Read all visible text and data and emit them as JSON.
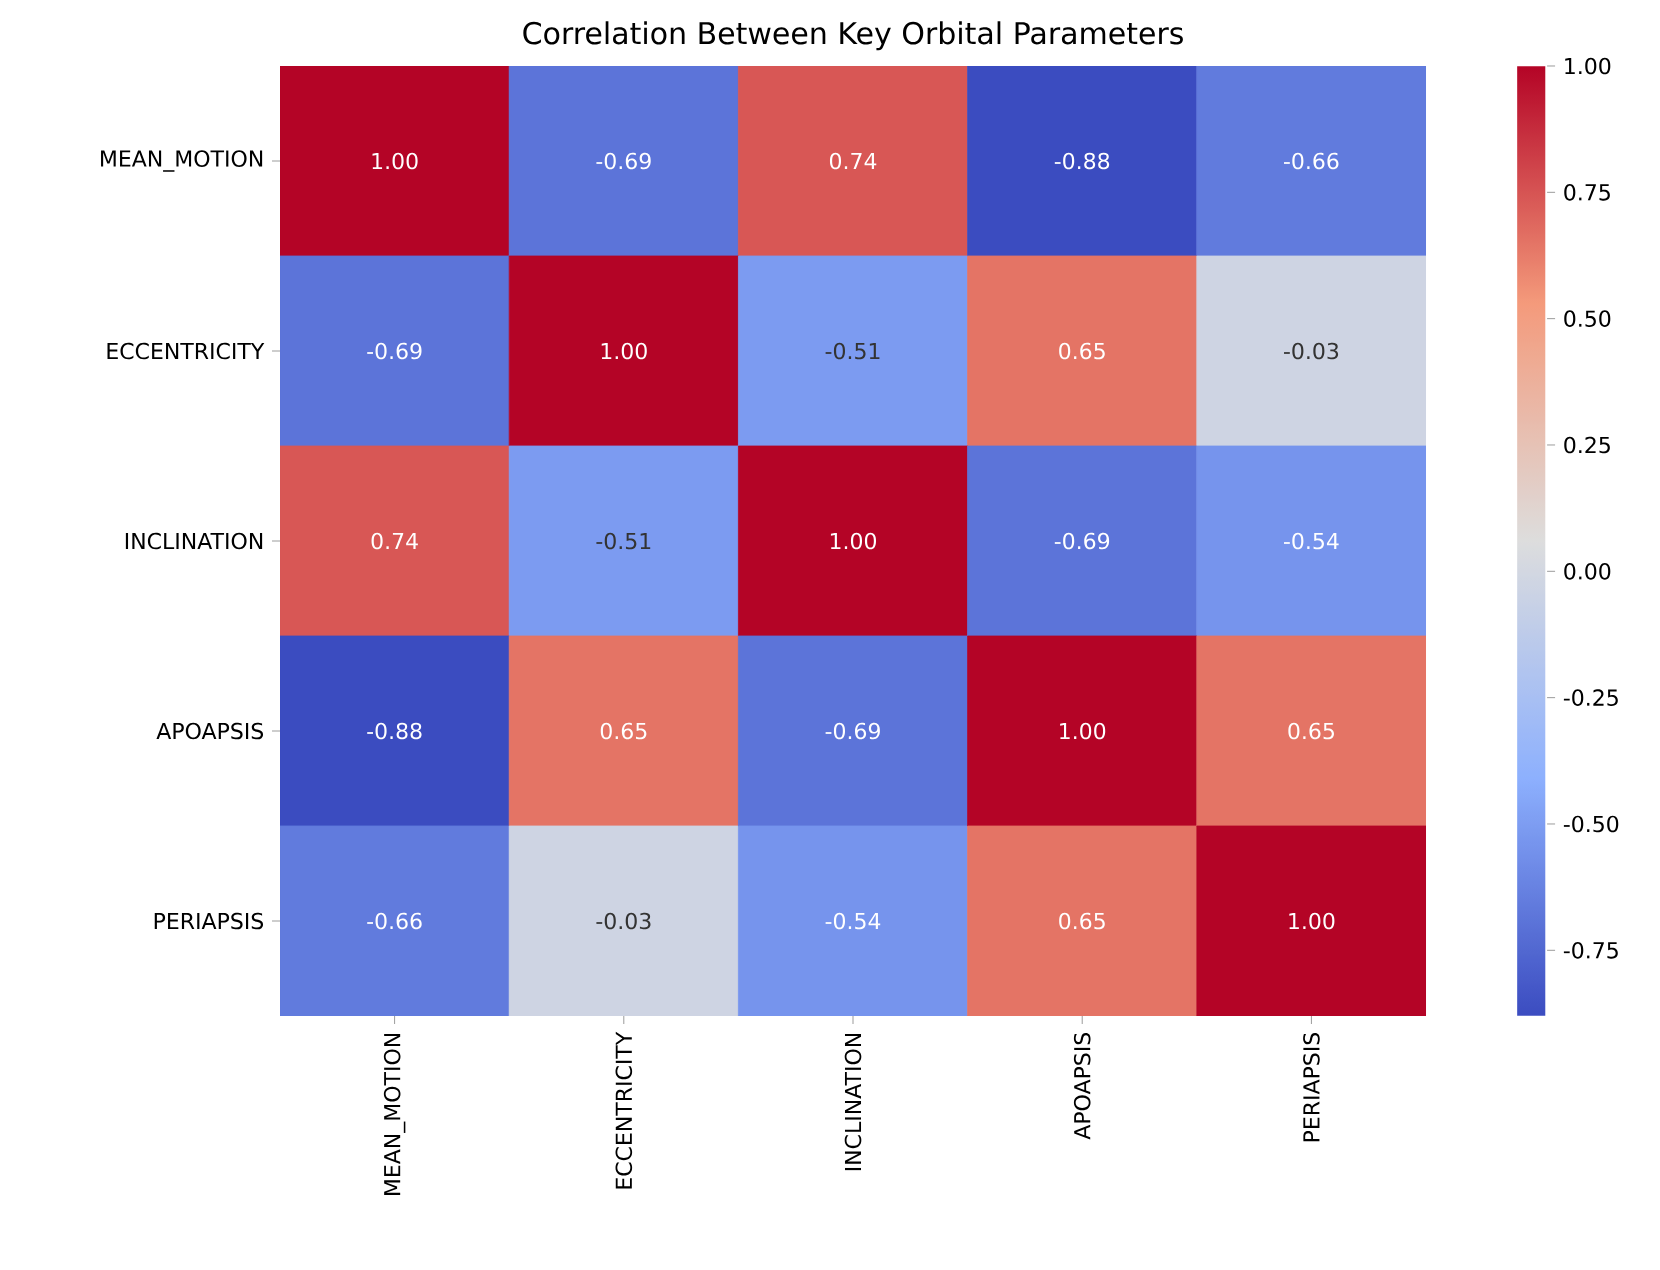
{
  "chart_data": {
    "type": "heatmap",
    "title": "Correlation Between Key Orbital Parameters",
    "categories": [
      "MEAN_MOTION",
      "ECCENTRICITY",
      "INCLINATION",
      "APOAPSIS",
      "PERIAPSIS"
    ],
    "y_categories": [
      "MEAN_MOTION",
      "ECCENTRICITY",
      "INCLINATION",
      "APOAPSIS",
      "PERIAPSIS"
    ],
    "cells": [
      [
        1.0,
        -0.69,
        0.74,
        -0.88,
        -0.66
      ],
      [
        -0.69,
        1.0,
        -0.51,
        0.65,
        -0.03
      ],
      [
        0.74,
        -0.51,
        1.0,
        -0.69,
        -0.54
      ],
      [
        -0.88,
        0.65,
        -0.69,
        1.0,
        0.65
      ],
      [
        -0.66,
        -0.03,
        -0.54,
        0.65,
        1.0
      ]
    ],
    "cell_labels": [
      [
        "1.00",
        "-0.69",
        "0.74",
        "-0.88",
        "-0.66"
      ],
      [
        "-0.69",
        "1.00",
        "-0.51",
        "0.65",
        "-0.03"
      ],
      [
        "0.74",
        "-0.51",
        "1.00",
        "-0.69",
        "-0.54"
      ],
      [
        "-0.88",
        "0.65",
        "-0.69",
        "1.00",
        "0.65"
      ],
      [
        "-0.66",
        "-0.03",
        "-0.54",
        "0.65",
        "1.00"
      ]
    ],
    "clim": [
      -0.88,
      1.0
    ],
    "cticks": [
      {
        "value": -0.75,
        "label": "-0.75"
      },
      {
        "value": -0.5,
        "label": "-0.50"
      },
      {
        "value": -0.25,
        "label": "-0.25"
      },
      {
        "value": 0,
        "label": "0.00"
      },
      {
        "value": 0.25,
        "label": "0.25"
      },
      {
        "value": 0.5,
        "label": "0.50"
      },
      {
        "value": 0.75,
        "label": "0.75"
      },
      {
        "value": 1.0,
        "label": "1.00"
      }
    ]
  }
}
